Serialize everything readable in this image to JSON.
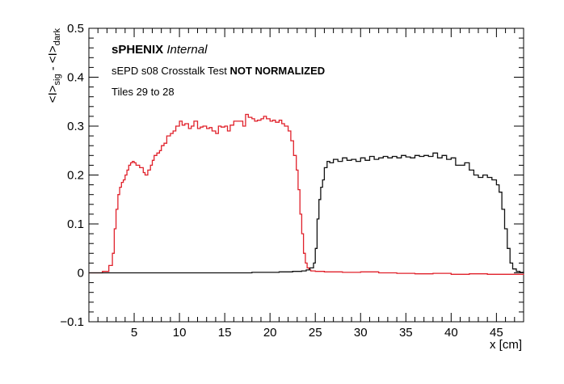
{
  "chart_data": {
    "type": "line",
    "style": "step",
    "title": "",
    "xlabel": "x [cm]",
    "ylabel_parts": {
      "a": "<I>",
      "a_sub": "sig",
      "minus": " - ",
      "b": "<I>",
      "b_sub": "dark"
    },
    "xlim": [
      0,
      48
    ],
    "ylim": [
      -0.1,
      0.5
    ],
    "xticks": [
      5,
      10,
      15,
      20,
      25,
      30,
      35,
      40,
      45
    ],
    "xtick_labels": [
      "5",
      "10",
      "15",
      "20",
      "25",
      "30",
      "35",
      "40",
      "45"
    ],
    "yticks": [
      -0.1,
      0,
      0.1,
      0.2,
      0.3,
      0.4,
      0.5
    ],
    "ytick_labels": [
      "−0.1",
      "0",
      "0.1",
      "0.2",
      "0.3",
      "0.4",
      "0.5"
    ],
    "grid": false,
    "annotations": {
      "brand_bold": "sPHENIX",
      "brand_italic": "Internal",
      "test_prefix": "sEPD s08 Crosstalk Test",
      "test_bold": "NOT NORMALIZED",
      "tiles": "Tiles 29 to 28"
    },
    "series": [
      {
        "color": "#e0202a",
        "x": [
          0,
          1.5,
          2.2,
          2.6,
          2.8,
          3.0,
          3.2,
          3.4,
          3.6,
          3.8,
          4.0,
          4.2,
          4.4,
          4.6,
          4.8,
          5.0,
          5.2,
          5.6,
          6.0,
          6.2,
          6.5,
          6.8,
          7.0,
          7.2,
          7.5,
          7.8,
          8.0,
          8.3,
          8.6,
          9.0,
          9.3,
          9.6,
          10.0,
          10.3,
          10.6,
          11.0,
          11.3,
          11.6,
          12.0,
          12.3,
          12.6,
          13.0,
          13.3,
          13.6,
          14.0,
          14.3,
          14.6,
          15.0,
          15.3,
          15.6,
          16.0,
          16.3,
          16.6,
          17.0,
          17.3,
          17.6,
          18.0,
          18.3,
          18.6,
          19.0,
          19.3,
          19.6,
          20.0,
          20.3,
          20.6,
          21.0,
          21.3,
          21.6,
          22.0,
          22.3,
          22.6,
          22.9,
          23.1,
          23.3,
          23.5,
          23.7,
          23.9,
          24.1,
          24.3,
          24.5,
          25.0,
          26.0,
          28.0,
          30.0,
          32.0,
          34.0,
          36.0,
          38.0,
          40.0,
          42.0,
          44.0,
          46.0,
          48.0
        ],
        "y": [
          0.0,
          0.003,
          0.015,
          0.04,
          0.09,
          0.13,
          0.16,
          0.175,
          0.185,
          0.19,
          0.2,
          0.21,
          0.22,
          0.225,
          0.228,
          0.225,
          0.22,
          0.215,
          0.205,
          0.2,
          0.21,
          0.22,
          0.23,
          0.24,
          0.245,
          0.25,
          0.26,
          0.265,
          0.28,
          0.285,
          0.29,
          0.3,
          0.31,
          0.302,
          0.305,
          0.295,
          0.3,
          0.31,
          0.295,
          0.298,
          0.3,
          0.295,
          0.297,
          0.29,
          0.285,
          0.3,
          0.298,
          0.3,
          0.29,
          0.302,
          0.31,
          0.31,
          0.31,
          0.3,
          0.324,
          0.318,
          0.315,
          0.31,
          0.312,
          0.315,
          0.32,
          0.315,
          0.31,
          0.312,
          0.308,
          0.312,
          0.305,
          0.3,
          0.29,
          0.27,
          0.24,
          0.21,
          0.17,
          0.12,
          0.08,
          0.04,
          0.02,
          0.01,
          0.006,
          0.004,
          0.003,
          0.002,
          0.001,
          0.002,
          0.0,
          -0.001,
          -0.002,
          -0.001,
          -0.003,
          -0.002,
          -0.003,
          -0.003,
          -0.004
        ]
      },
      {
        "color": "#111111",
        "x": [
          0,
          3.0,
          6.0,
          9.0,
          12.0,
          15.0,
          18.0,
          21.0,
          22.5,
          23.5,
          24.0,
          24.4,
          24.8,
          25.0,
          25.2,
          25.4,
          25.6,
          25.8,
          26.0,
          26.3,
          26.6,
          27.0,
          27.5,
          28.0,
          28.5,
          29.0,
          29.5,
          30.0,
          30.5,
          31.0,
          31.5,
          32.0,
          32.5,
          33.0,
          33.5,
          34.0,
          34.5,
          35.0,
          35.5,
          36.0,
          36.5,
          37.0,
          37.5,
          38.0,
          38.5,
          39.0,
          39.5,
          40.0,
          40.5,
          41.0,
          41.5,
          42.0,
          42.5,
          43.0,
          43.5,
          44.0,
          44.5,
          45.0,
          45.3,
          45.6,
          45.9,
          46.2,
          46.5,
          46.8,
          47.2,
          47.6,
          48.0
        ],
        "y": [
          0.0,
          0.0,
          0.0,
          0.0,
          0.0,
          0.0,
          0.001,
          0.002,
          0.003,
          0.004,
          0.006,
          0.01,
          0.02,
          0.05,
          0.11,
          0.15,
          0.175,
          0.19,
          0.215,
          0.228,
          0.225,
          0.232,
          0.228,
          0.235,
          0.23,
          0.232,
          0.228,
          0.235,
          0.23,
          0.238,
          0.232,
          0.235,
          0.238,
          0.235,
          0.238,
          0.235,
          0.24,
          0.237,
          0.235,
          0.24,
          0.238,
          0.24,
          0.238,
          0.245,
          0.235,
          0.24,
          0.232,
          0.235,
          0.22,
          0.22,
          0.225,
          0.21,
          0.2,
          0.195,
          0.2,
          0.195,
          0.19,
          0.18,
          0.165,
          0.13,
          0.09,
          0.05,
          0.02,
          0.008,
          0.003,
          0.001,
          0.0
        ]
      }
    ]
  }
}
